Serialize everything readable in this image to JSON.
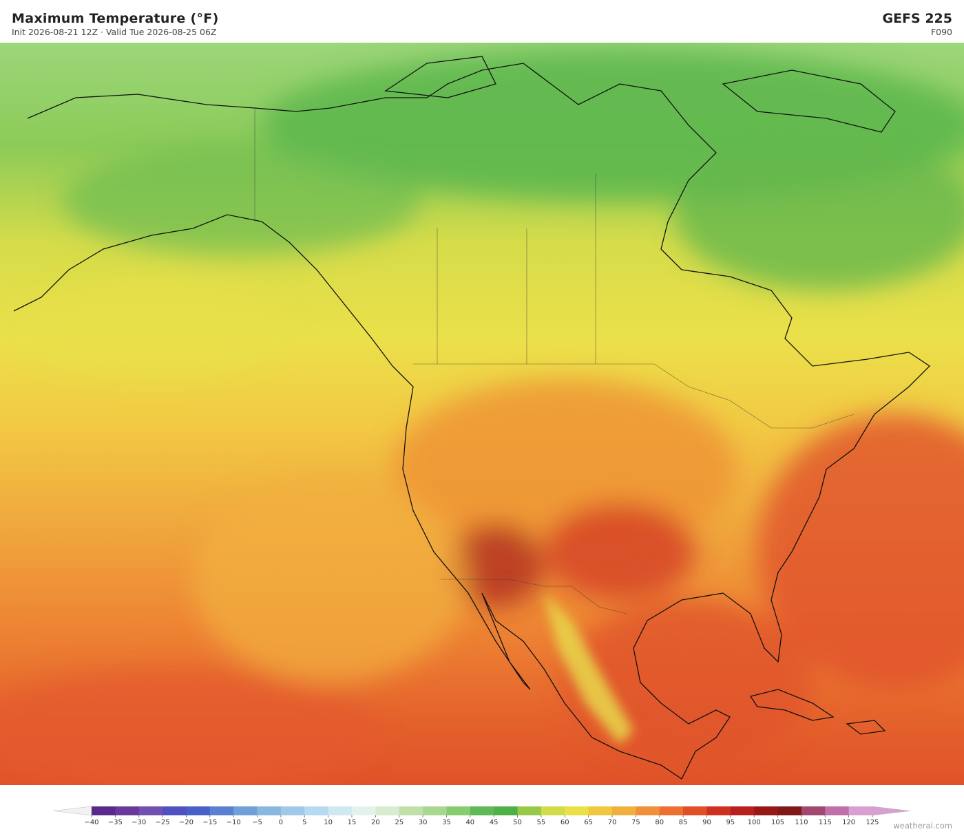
{
  "header": {
    "title": "Maximum Temperature  (°F)",
    "subtitle": "Init 2026-08-21 12Z   ·   Valid Tue 2026-08-25 06Z",
    "model": "GEFS  225",
    "forecast_hour": "F090"
  },
  "colorbar": {
    "labels": [
      "−40",
      "−35",
      "−30",
      "−25",
      "−20",
      "−15",
      "−10",
      "−5",
      "0",
      "5",
      "10",
      "15",
      "20",
      "25",
      "30",
      "35",
      "40",
      "45",
      "50",
      "55",
      "60",
      "65",
      "70",
      "75",
      "80",
      "85",
      "90",
      "95",
      "100",
      "105",
      "110",
      "115",
      "120",
      "125"
    ],
    "colors": [
      "#5a2a8a",
      "#6a3a9a",
      "#7050b0",
      "#5050c0",
      "#4a60c8",
      "#5a80d0",
      "#70a0d8",
      "#88b8e0",
      "#a0c8e8",
      "#b8daf0",
      "#d0e8f0",
      "#e4f2ec",
      "#d8ecd0",
      "#c0e0a8",
      "#a8d890",
      "#88cc70",
      "#60b858",
      "#50b048",
      "#98c848",
      "#d0dc48",
      "#ece048",
      "#f0c840",
      "#f0b040",
      "#f09038",
      "#ec7030",
      "#e05028",
      "#d03020",
      "#b82020",
      "#981818",
      "#801818",
      "#a04870",
      "#c070a8",
      "#d8a0d0"
    ]
  },
  "watermark": "weatherai.com"
}
